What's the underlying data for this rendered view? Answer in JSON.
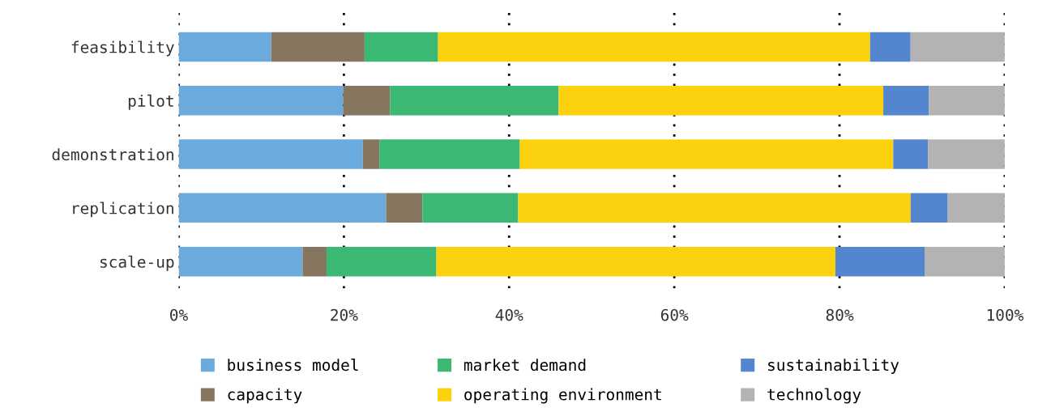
{
  "chart_data": {
    "type": "bar",
    "orientation": "horizontal",
    "stacked": true,
    "categories": [
      "feasibility",
      "pilot",
      "demonstration",
      "replication",
      "scale-up"
    ],
    "series": [
      {
        "name": "business model",
        "color": "#6aaadd",
        "values": [
          11.2,
          19.9,
          22.3,
          25.1,
          15.0
        ]
      },
      {
        "name": "capacity",
        "color": "#86755f",
        "values": [
          11.3,
          5.7,
          2.0,
          4.4,
          2.9
        ]
      },
      {
        "name": "market demand",
        "color": "#3bb873",
        "values": [
          8.9,
          20.4,
          17.0,
          11.6,
          13.3
        ]
      },
      {
        "name": "operating environment",
        "color": "#fcd20e",
        "values": [
          52.3,
          39.3,
          45.2,
          47.5,
          48.3
        ]
      },
      {
        "name": "sustainability",
        "color": "#5486cf",
        "values": [
          4.9,
          5.5,
          4.2,
          4.5,
          10.8
        ]
      },
      {
        "name": "technology",
        "color": "#b3b3b3",
        "values": [
          11.4,
          9.2,
          9.3,
          6.9,
          9.7
        ]
      }
    ],
    "xlim": [
      0,
      100
    ],
    "xticks": [
      {
        "value": 0,
        "label": "0%"
      },
      {
        "value": 20,
        "label": "20%"
      },
      {
        "value": 40,
        "label": "40%"
      },
      {
        "value": 60,
        "label": "60%"
      },
      {
        "value": 80,
        "label": "80%"
      },
      {
        "value": 100,
        "label": "100%"
      }
    ],
    "grid": "x",
    "legend": "bottom"
  }
}
